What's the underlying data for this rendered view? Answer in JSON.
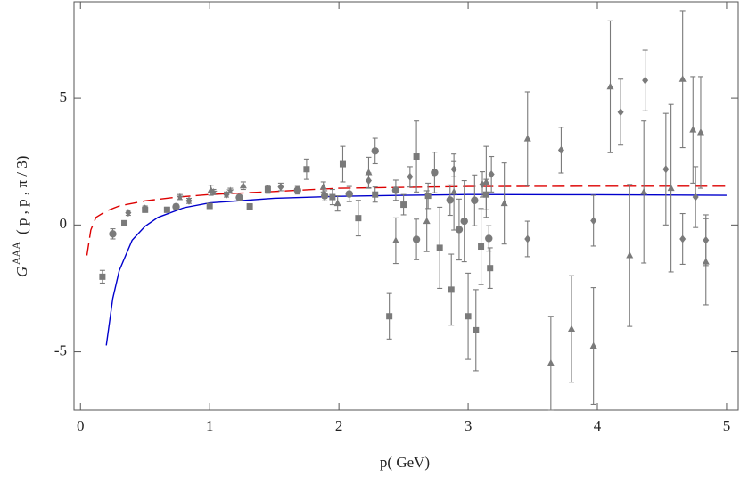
{
  "chart_data": {
    "type": "scatter",
    "xlabel": "p( GeV)",
    "ylabel": {
      "symbol": "G",
      "superscript": "AAA",
      "argument": "( p , p , π / 3)"
    },
    "xlim": [
      -0.05,
      5.09
    ],
    "ylim": [
      -7.3,
      8.8
    ],
    "xticks": [
      0,
      1,
      2,
      3,
      4,
      5
    ],
    "yticks": [
      -5,
      0,
      5
    ],
    "series": [
      {
        "marker": "square",
        "color": "#7a7a7a",
        "x": [
          0.17,
          0.34,
          0.5,
          0.67,
          1.0,
          1.31,
          1.45,
          1.75,
          1.95,
          2.03,
          2.15,
          2.28,
          2.39,
          2.5,
          2.6,
          2.69,
          2.78,
          2.87,
          3.0,
          3.06,
          3.1,
          3.14,
          3.17
        ],
        "values": [
          -2.04,
          0.07,
          0.6,
          0.6,
          0.75,
          0.73,
          1.4,
          2.2,
          1.1,
          2.4,
          0.27,
          1.2,
          -3.6,
          0.8,
          2.7,
          1.15,
          -0.9,
          -2.55,
          -3.6,
          -4.15,
          -0.85,
          1.2,
          -1.7
        ],
        "errors": [
          0.25,
          0.1,
          0.1,
          0.1,
          0.1,
          0.1,
          0.15,
          0.4,
          0.3,
          0.7,
          0.7,
          0.3,
          0.9,
          0.4,
          1.4,
          0.5,
          1.6,
          1.4,
          1.7,
          1.6,
          1.5,
          0.6,
          0.8
        ]
      },
      {
        "marker": "circle",
        "color": "#7a7a7a",
        "x": [
          0.25,
          0.74,
          1.23,
          1.68,
          1.89,
          2.08,
          2.28,
          2.44,
          2.6,
          2.74,
          2.86,
          2.93,
          2.97,
          3.05,
          3.16
        ],
        "values": [
          -0.35,
          0.72,
          1.08,
          1.37,
          1.15,
          1.22,
          2.92,
          1.37,
          -0.57,
          2.07,
          0.98,
          -0.18,
          0.15,
          0.97,
          -0.53
        ],
        "errors": [
          0.2,
          0.1,
          0.1,
          0.15,
          0.2,
          0.3,
          0.5,
          0.4,
          0.8,
          0.8,
          0.6,
          1.2,
          1.6,
          1.0,
          0.5
        ]
      },
      {
        "marker": "triangle",
        "color": "#7a7a7a",
        "x": [
          1.01,
          1.26,
          1.88,
          1.99,
          2.23,
          2.44,
          2.68,
          2.89,
          3.14,
          3.28,
          3.46,
          3.64,
          3.8,
          3.97,
          4.1,
          4.25,
          4.36,
          4.57,
          4.66,
          4.74,
          4.8,
          4.84
        ],
        "values": [
          1.37,
          1.55,
          1.5,
          0.85,
          2.07,
          -0.62,
          0.15,
          1.3,
          1.7,
          0.85,
          3.4,
          -5.45,
          -4.1,
          -4.77,
          5.45,
          -1.2,
          1.3,
          1.45,
          5.75,
          3.75,
          3.65,
          -1.45
        ],
        "errors": [
          0.2,
          0.15,
          0.2,
          0.3,
          0.6,
          0.9,
          1.2,
          1.5,
          1.4,
          1.6,
          1.85,
          1.85,
          2.1,
          2.3,
          2.6,
          2.8,
          2.8,
          3.3,
          2.7,
          2.1,
          2.2,
          1.7
        ]
      },
      {
        "marker": "diamond",
        "color": "#7a7a7a",
        "x": [
          0.37,
          0.5,
          0.84,
          1.13,
          1.55,
          2.23,
          2.55,
          2.89,
          3.11,
          3.18,
          3.46,
          3.72,
          3.97,
          4.18,
          4.37,
          4.53,
          4.66,
          4.76,
          4.84
        ],
        "values": [
          0.48,
          0.65,
          0.95,
          1.2,
          1.5,
          1.75,
          1.9,
          2.2,
          1.6,
          2.0,
          -0.55,
          2.95,
          0.17,
          4.45,
          5.7,
          2.2,
          -0.55,
          1.1,
          -0.6
        ],
        "errors": [
          0.1,
          0.1,
          0.1,
          0.1,
          0.15,
          0.3,
          0.4,
          0.3,
          0.5,
          0.7,
          0.7,
          0.9,
          1.0,
          1.3,
          1.2,
          2.2,
          1.0,
          1.2,
          1.0
        ]
      },
      {
        "marker": "star",
        "color": "#7a7a7a",
        "x": [
          0.77,
          1.03,
          1.16
        ],
        "values": [
          1.1,
          1.3,
          1.35
        ],
        "errors": [
          0.1,
          0.1,
          0.1
        ]
      }
    ],
    "curves": [
      {
        "color": "#dd0000",
        "dash": true,
        "x": [
          0.05,
          0.08,
          0.12,
          0.2,
          0.3,
          0.5,
          0.75,
          1,
          1.5,
          2,
          3,
          4,
          5
        ],
        "values": [
          -1.2,
          -0.2,
          0.3,
          0.55,
          0.75,
          0.95,
          1.1,
          1.2,
          1.32,
          1.45,
          1.52,
          1.53,
          1.53
        ]
      },
      {
        "color": "#0000cc",
        "dash": false,
        "x": [
          0.2,
          0.25,
          0.3,
          0.4,
          0.5,
          0.6,
          0.8,
          1,
          1.5,
          2,
          2.5,
          3,
          4,
          5
        ],
        "values": [
          -4.75,
          -2.9,
          -1.8,
          -0.6,
          -0.05,
          0.3,
          0.68,
          0.87,
          1.05,
          1.13,
          1.17,
          1.2,
          1.19,
          1.17
        ]
      }
    ]
  }
}
